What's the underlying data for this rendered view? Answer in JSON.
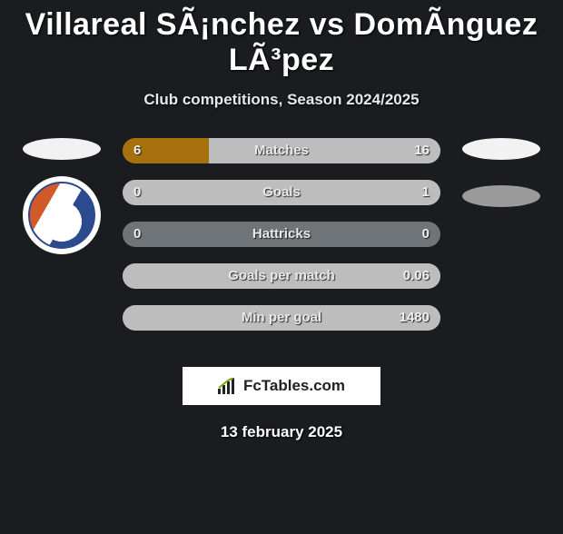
{
  "title": "Villareal SÃ¡nchez vs DomÃ­nguez LÃ³pez",
  "subtitle": "Club competitions, Season 2024/2025",
  "date": "13 february 2025",
  "brand": {
    "icon_name": "bar-chart-icon",
    "text": "FcTables.com"
  },
  "colors": {
    "bg": "#1a1c1f",
    "row_neutral": "#6f7478",
    "left_fill": "#a6700d",
    "right_fill": "#bdbdbd",
    "ellipse_light": "#f2f2f2",
    "ellipse_dark": "#9a9a9a"
  },
  "rows": [
    {
      "label": "Matches",
      "left": "6",
      "right": "16",
      "left_pct": 27,
      "right_pct": 73,
      "left_color": "#a6700d",
      "right_color": "#bdbdbd"
    },
    {
      "label": "Goals",
      "left": "0",
      "right": "1",
      "left_pct": 0,
      "right_pct": 100,
      "left_color": "#a6700d",
      "right_color": "#bdbdbd"
    },
    {
      "label": "Hattricks",
      "left": "0",
      "right": "0",
      "left_pct": 0,
      "right_pct": 0,
      "left_color": "#a6700d",
      "right_color": "#bdbdbd"
    },
    {
      "label": "Goals per match",
      "left": "",
      "right": "0.06",
      "left_pct": 0,
      "right_pct": 100,
      "left_color": "#a6700d",
      "right_color": "#bdbdbd"
    },
    {
      "label": "Min per goal",
      "left": "",
      "right": "1480",
      "left_pct": 0,
      "right_pct": 100,
      "left_color": "#a6700d",
      "right_color": "#bdbdbd"
    }
  ]
}
